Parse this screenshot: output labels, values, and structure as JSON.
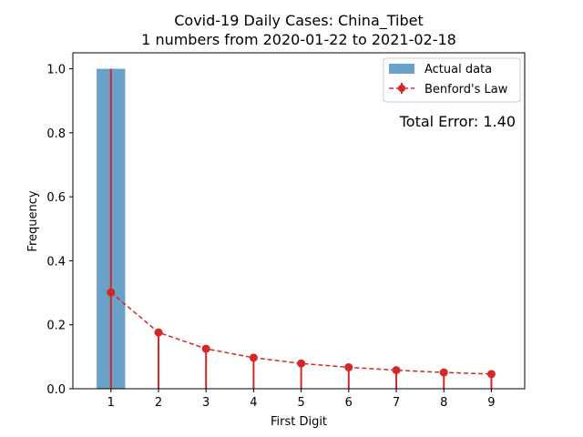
{
  "chart_data": {
    "type": "bar",
    "title": "Covid-19 Daily Cases: China_Tibet",
    "subtitle": "1 numbers from 2020-01-22 to 2021-02-18",
    "xlabel": "First Digit",
    "ylabel": "Frequency",
    "categories": [
      "1",
      "2",
      "3",
      "4",
      "5",
      "6",
      "7",
      "8",
      "9"
    ],
    "xlim": [
      0.2,
      9.7
    ],
    "ylim": [
      0,
      1.05
    ],
    "yticks": [
      0.0,
      0.2,
      0.4,
      0.6,
      0.8,
      1.0
    ],
    "ytick_labels": [
      "0.0",
      "0.2",
      "0.4",
      "0.6",
      "0.8",
      "1.0"
    ],
    "grid": false,
    "legend_position": "top-right",
    "series": [
      {
        "name": "Actual data",
        "kind": "bar",
        "color": "#6aa1c9",
        "values": [
          1.0,
          0,
          0,
          0,
          0,
          0,
          0,
          0,
          0
        ]
      },
      {
        "name": "Benford's Law",
        "kind": "line-with-error-bars",
        "color": "#d62728",
        "line_style": "dashed",
        "values": [
          0.301,
          0.176,
          0.125,
          0.097,
          0.079,
          0.067,
          0.058,
          0.051,
          0.046
        ]
      }
    ],
    "annotations": [
      {
        "text": "Total Error: 1.40",
        "color": "#d62728"
      }
    ]
  }
}
